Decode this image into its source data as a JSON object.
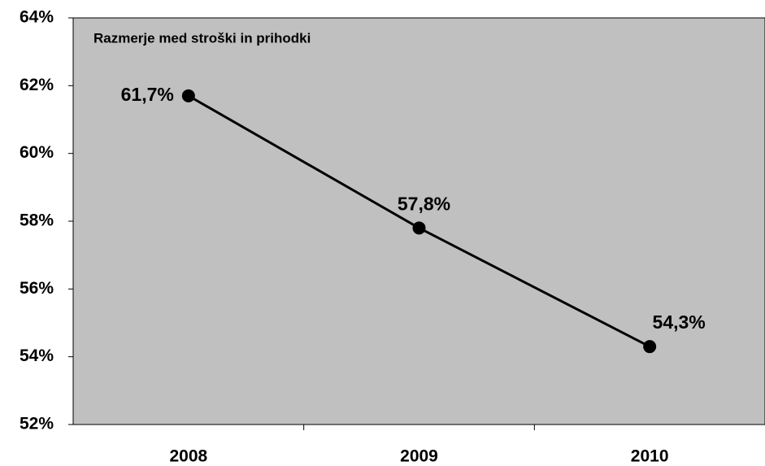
{
  "chart_data": {
    "type": "line",
    "title": "Razmerje med stroški in prihodki",
    "categories": [
      "2008",
      "2009",
      "2010"
    ],
    "series": [
      {
        "name": "Razmerje med stroški in prihodki",
        "color": "#000000",
        "values": [
          61.7,
          57.8,
          54.3
        ],
        "value_labels": [
          "61,7%",
          "57,8%",
          "54,3%"
        ]
      }
    ],
    "ylim": [
      52,
      64
    ],
    "yticks": [
      {
        "value": 52,
        "label": "52%"
      },
      {
        "value": 54,
        "label": "54%"
      },
      {
        "value": 56,
        "label": "56%"
      },
      {
        "value": 58,
        "label": "58%"
      },
      {
        "value": 60,
        "label": "60%"
      },
      {
        "value": 62,
        "label": "62%"
      },
      {
        "value": 64,
        "label": "64%"
      }
    ],
    "plot_background": "#c0c0c0",
    "grid": false
  }
}
